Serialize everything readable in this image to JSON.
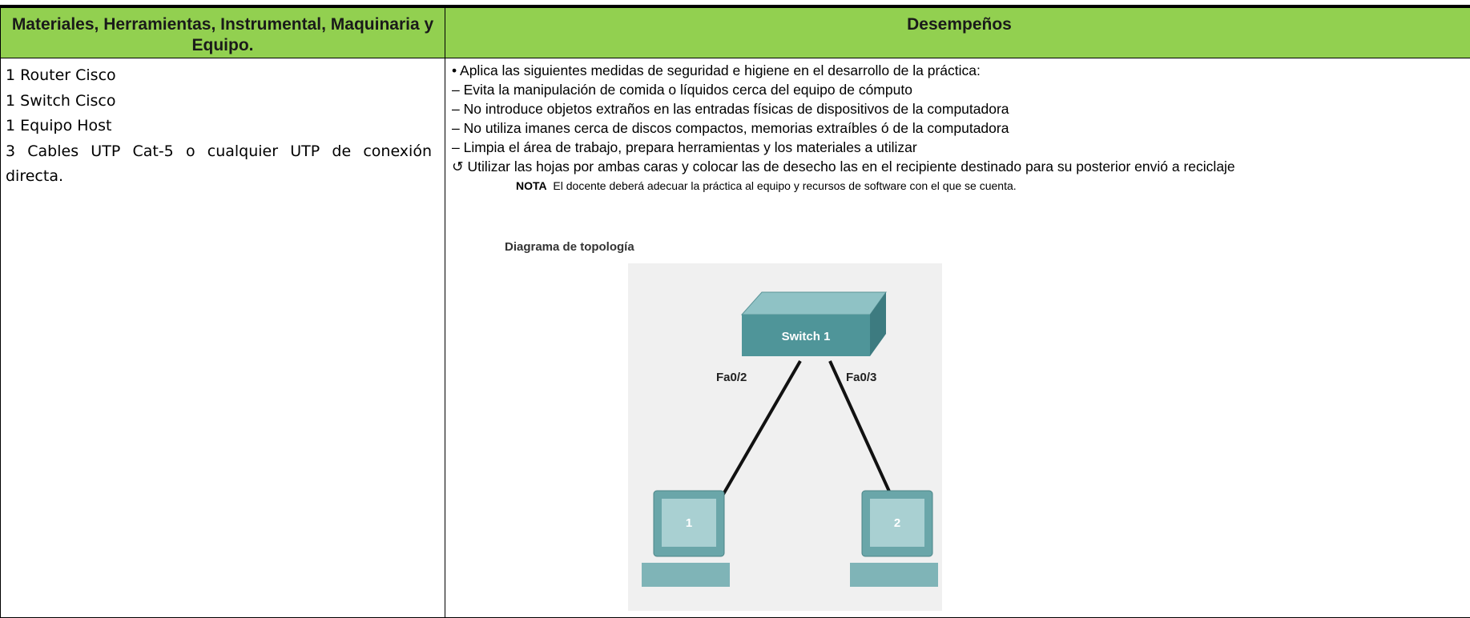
{
  "table": {
    "header": [
      "Materiales, Herramientas, Instrumental, Maquinaria y Equipo.",
      "Desempeños"
    ],
    "materials": [
      "1 Router Cisco",
      "1 Switch Cisco",
      "1 Equipo Host",
      "3 Cables UTP Cat-5 o cualquier UTP de conexión directa."
    ],
    "performance": [
      "• Aplica las siguientes medidas de seguridad e higiene en el desarrollo de la práctica:",
      "–  Evita la manipulación de comida o líquidos cerca del equipo de cómputo",
      "–  No introduce objetos extraños en las entradas físicas de dispositivos de la computadora",
      "–  No utiliza imanes cerca de discos compactos, memorias extraíbles ó de la computadora",
      "–  Limpia el área de trabajo, prepara herramientas y los materiales a utilizar",
      "↺ Utilizar las hojas por ambas caras y colocar las de desecho las en el recipiente destinado para su posterior envió a reciclaje"
    ],
    "note": {
      "label": "NOTA",
      "text": "El docente deberá adecuar la práctica al equipo y recursos de software con el que se cuenta."
    },
    "diagram": {
      "title": "Diagrama de topología",
      "switch": "Switch 1",
      "ports": [
        "Fa0/2",
        "Fa0/3"
      ],
      "hosts": [
        "1",
        "2"
      ]
    }
  }
}
